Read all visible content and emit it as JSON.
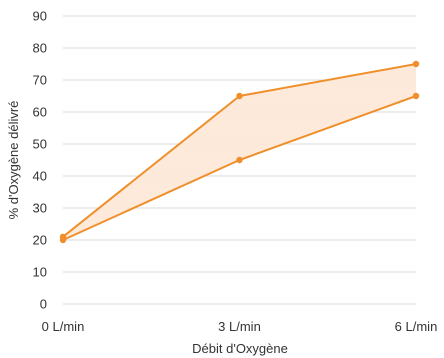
{
  "chart_data": {
    "type": "area",
    "title": "",
    "xlabel": "Débit d'Oxygène",
    "ylabel": "% d'Oxygène délivré",
    "categories": [
      "0 L/min",
      "3 L/min",
      "6 L/min"
    ],
    "x": [
      0,
      3,
      6
    ],
    "xlim": [
      0,
      6
    ],
    "ylim": [
      0,
      90
    ],
    "yticks": [
      0,
      10,
      20,
      30,
      40,
      50,
      60,
      70,
      80,
      90
    ],
    "grid": true,
    "legend": "none",
    "series": [
      {
        "values": [
          21,
          65,
          75
        ]
      },
      {
        "values": [
          20,
          45,
          65
        ]
      }
    ],
    "fill_between": true,
    "colors": {
      "line": "#ef8f2c",
      "fill": "#fde6d3",
      "grid": "#d9d9d9",
      "text": "#333333"
    }
  }
}
